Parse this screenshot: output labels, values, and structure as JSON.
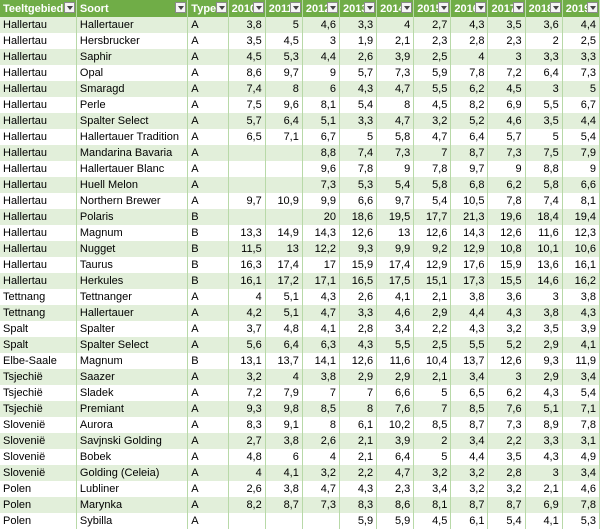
{
  "columns": [
    "Teeltgebied",
    "Soort",
    "Type",
    "2010",
    "2011",
    "2012",
    "2013",
    "2014",
    "2015",
    "2016",
    "2017",
    "2018",
    "2019"
  ],
  "rows": [
    [
      "Hallertau",
      "Hallertauer",
      "A",
      "3,8",
      "5",
      "4,6",
      "3,3",
      "4",
      "2,7",
      "4,3",
      "3,5",
      "3,6",
      "4,4"
    ],
    [
      "Hallertau",
      "Hersbrucker",
      "A",
      "3,5",
      "4,5",
      "3",
      "1,9",
      "2,1",
      "2,3",
      "2,8",
      "2,3",
      "2",
      "2,5"
    ],
    [
      "Hallertau",
      "Saphir",
      "A",
      "4,5",
      "5,3",
      "4,4",
      "2,6",
      "3,9",
      "2,5",
      "4",
      "3",
      "3,3",
      "3,3"
    ],
    [
      "Hallertau",
      "Opal",
      "A",
      "8,6",
      "9,7",
      "9",
      "5,7",
      "7,3",
      "5,9",
      "7,8",
      "7,2",
      "6,4",
      "7,3"
    ],
    [
      "Hallertau",
      "Smaragd",
      "A",
      "7,4",
      "8",
      "6",
      "4,3",
      "4,7",
      "5,5",
      "6,2",
      "4,5",
      "3",
      "5"
    ],
    [
      "Hallertau",
      "Perle",
      "A",
      "7,5",
      "9,6",
      "8,1",
      "5,4",
      "8",
      "4,5",
      "8,2",
      "6,9",
      "5,5",
      "6,7"
    ],
    [
      "Hallertau",
      "Spalter Select",
      "A",
      "5,7",
      "6,4",
      "5,1",
      "3,3",
      "4,7",
      "3,2",
      "5,2",
      "4,6",
      "3,5",
      "4,4"
    ],
    [
      "Hallertau",
      "Hallertauer Tradition",
      "A",
      "6,5",
      "7,1",
      "6,7",
      "5",
      "5,8",
      "4,7",
      "6,4",
      "5,7",
      "5",
      "5,4"
    ],
    [
      "Hallertau",
      "Mandarina Bavaria",
      "A",
      "",
      "",
      "8,8",
      "7,4",
      "7,3",
      "7",
      "8,7",
      "7,3",
      "7,5",
      "7,9"
    ],
    [
      "Hallertau",
      "Hallertauer Blanc",
      "A",
      "",
      "",
      "9,6",
      "7,8",
      "9",
      "7,8",
      "9,7",
      "9",
      "8,8",
      "9"
    ],
    [
      "Hallertau",
      "Huell Melon",
      "A",
      "",
      "",
      "7,3",
      "5,3",
      "5,4",
      "5,8",
      "6,8",
      "6,2",
      "5,8",
      "6,6"
    ],
    [
      "Hallertau",
      "Northern Brewer",
      "A",
      "9,7",
      "10,9",
      "9,9",
      "6,6",
      "9,7",
      "5,4",
      "10,5",
      "7,8",
      "7,4",
      "8,1"
    ],
    [
      "Hallertau",
      "Polaris",
      "B",
      "",
      "",
      "20",
      "18,6",
      "19,5",
      "17,7",
      "21,3",
      "19,6",
      "18,4",
      "19,4"
    ],
    [
      "Hallertau",
      "Magnum",
      "B",
      "13,3",
      "14,9",
      "14,3",
      "12,6",
      "13",
      "12,6",
      "14,3",
      "12,6",
      "11,6",
      "12,3"
    ],
    [
      "Hallertau",
      "Nugget",
      "B",
      "11,5",
      "13",
      "12,2",
      "9,3",
      "9,9",
      "9,2",
      "12,9",
      "10,8",
      "10,1",
      "10,6"
    ],
    [
      "Hallertau",
      "Taurus",
      "B",
      "16,3",
      "17,4",
      "17",
      "15,9",
      "17,4",
      "12,9",
      "17,6",
      "15,9",
      "13,6",
      "16,1"
    ],
    [
      "Hallertau",
      "Herkules",
      "B",
      "16,1",
      "17,2",
      "17,1",
      "16,5",
      "17,5",
      "15,1",
      "17,3",
      "15,5",
      "14,6",
      "16,2"
    ],
    [
      "Tettnang",
      "Tettnanger",
      "A",
      "4",
      "5,1",
      "4,3",
      "2,6",
      "4,1",
      "2,1",
      "3,8",
      "3,6",
      "3",
      "3,8"
    ],
    [
      "Tettnang",
      "Hallertauer",
      "A",
      "4,2",
      "5,1",
      "4,7",
      "3,3",
      "4,6",
      "2,9",
      "4,4",
      "4,3",
      "3,8",
      "4,3"
    ],
    [
      "Spalt",
      "Spalter",
      "A",
      "3,7",
      "4,8",
      "4,1",
      "2,8",
      "3,4",
      "2,2",
      "4,3",
      "3,2",
      "3,5",
      "3,9"
    ],
    [
      "Spalt",
      "Spalter Select",
      "A",
      "5,6",
      "6,4",
      "6,3",
      "4,3",
      "5,5",
      "2,5",
      "5,5",
      "5,2",
      "2,9",
      "4,1"
    ],
    [
      "Elbe-Saale",
      "Magnum",
      "B",
      "13,1",
      "13,7",
      "14,1",
      "12,6",
      "11,6",
      "10,4",
      "13,7",
      "12,6",
      "9,3",
      "11,9"
    ],
    [
      "Tsjechië",
      "Saazer",
      "A",
      "3,2",
      "4",
      "3,8",
      "2,9",
      "2,9",
      "2,1",
      "3,4",
      "3",
      "2,9",
      "3,4"
    ],
    [
      "Tsjechië",
      "Sladek",
      "A",
      "7,2",
      "7,9",
      "7",
      "7",
      "6,6",
      "5",
      "6,5",
      "6,2",
      "4,3",
      "5,4"
    ],
    [
      "Tsjechië",
      "Premiant",
      "A",
      "9,3",
      "9,8",
      "8,5",
      "8",
      "7,6",
      "7",
      "8,5",
      "7,6",
      "5,1",
      "7,1"
    ],
    [
      "Slovenië",
      "Aurora",
      "A",
      "8,3",
      "9,1",
      "8",
      "6,1",
      "10,2",
      "8,5",
      "8,7",
      "7,3",
      "8,9",
      "7,8"
    ],
    [
      "Slovenië",
      "Savjnski Golding",
      "A",
      "2,7",
      "3,8",
      "2,6",
      "2,1",
      "3,9",
      "2",
      "3,4",
      "2,2",
      "3,3",
      "3,1"
    ],
    [
      "Slovenië",
      "Bobek",
      "A",
      "4,8",
      "6",
      "4",
      "2,1",
      "6,4",
      "5",
      "4,4",
      "3,5",
      "4,3",
      "4,9"
    ],
    [
      "Slovenië",
      "Golding (Celeia)",
      "A",
      "4",
      "4,1",
      "3,2",
      "2,2",
      "4,7",
      "3,2",
      "3,2",
      "2,8",
      "3",
      "3,4"
    ],
    [
      "Polen",
      "Lubliner",
      "A",
      "2,6",
      "3,8",
      "4,7",
      "4,3",
      "2,3",
      "3,4",
      "3,2",
      "3,2",
      "2,1",
      "4,6"
    ],
    [
      "Polen",
      "Marynka",
      "A",
      "8,2",
      "8,7",
      "7,3",
      "8,3",
      "8,6",
      "8,1",
      "8,7",
      "8,7",
      "6,9",
      "7,8"
    ],
    [
      "Polen",
      "Sybilla",
      "A",
      "",
      "",
      "",
      "5,9",
      "5,9",
      "4,5",
      "6,1",
      "5,4",
      "4,1",
      "5,3"
    ]
  ]
}
